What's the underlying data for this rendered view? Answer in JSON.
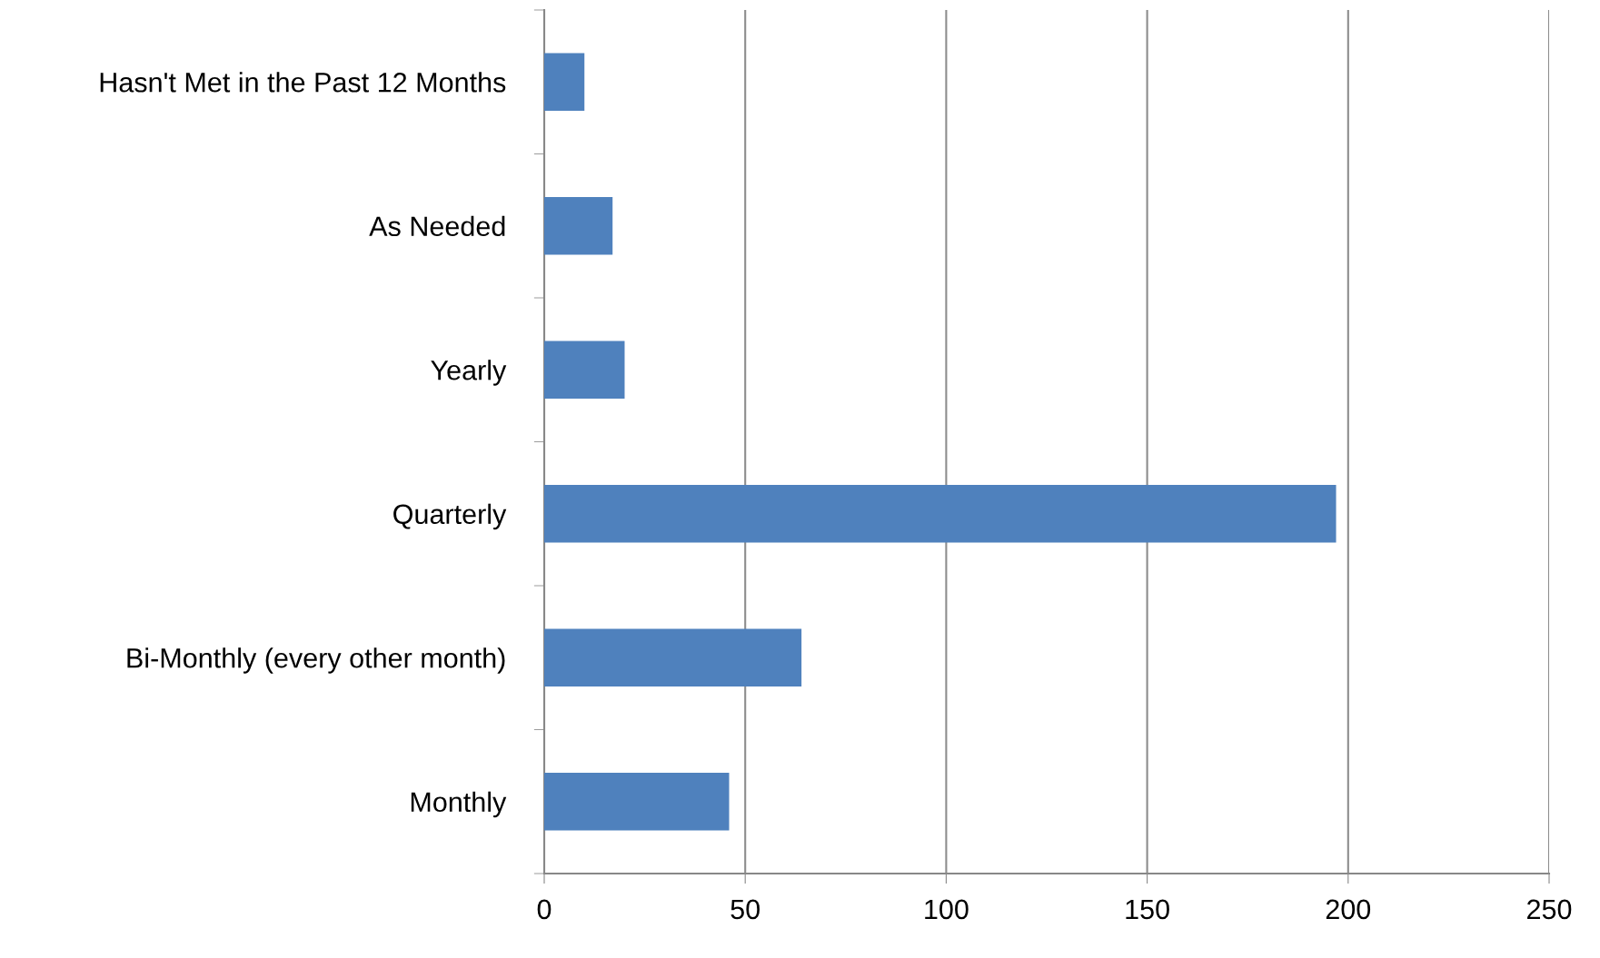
{
  "chart_data": {
    "type": "bar",
    "orientation": "horizontal",
    "categories": [
      "Hasn't Met in the Past 12 Months",
      "As Needed",
      "Yearly",
      "Quarterly",
      "Bi-Monthly (every other month)",
      "Monthly"
    ],
    "values": [
      10,
      17,
      20,
      197,
      64,
      46
    ],
    "color": "#4f81bd",
    "xlim": [
      0,
      250
    ],
    "xticks": [
      0,
      50,
      100,
      150,
      200,
      250
    ],
    "grid": "x",
    "legend": false
  }
}
